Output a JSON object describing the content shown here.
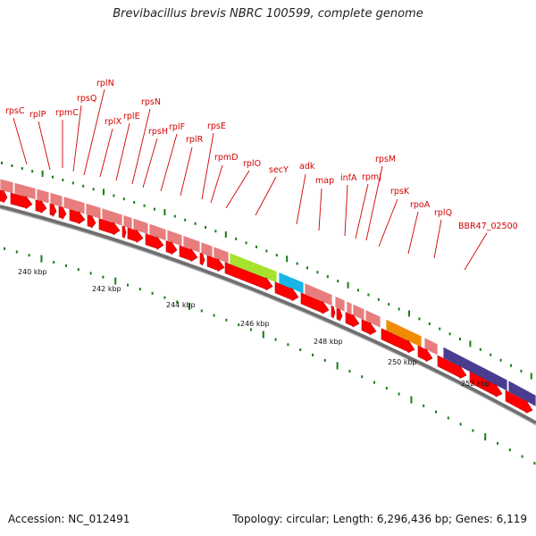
{
  "title": "Brevibacillus brevis NBRC 100599, complete genome",
  "footer": {
    "accession": "Accession: NC_012491",
    "topology": "Topology: circular; Length: 6,296,436 bp; Genes: 6,119"
  },
  "colors": {
    "label": "#d40000",
    "tick": "#1a7a1a",
    "cds": "#ff0000",
    "gene": "#e87d7d",
    "green_gene": "#a6e22e",
    "cyan_gene": "#17b6e6",
    "orange_gene": "#f08a00",
    "purple_gene": "#4a3d8f"
  },
  "kbp_labels": [
    "240 kbp",
    "242 kbp",
    "244 kbp",
    "246 kbp",
    "248 kbp",
    "250 kbp",
    "252 kbp"
  ],
  "gene_labels": [
    "rpsC",
    "rplP",
    "rpmC",
    "rpsQ",
    "rplN",
    "rplX",
    "rplE",
    "rpsN",
    "rpsH",
    "rplF",
    "rplR",
    "rpsE",
    "rpmD",
    "rplO",
    "secY",
    "adk",
    "map",
    "infA",
    "rpmJ",
    "rpsM",
    "rpsK",
    "rpoA",
    "rplQ",
    "BBR47_02500"
  ]
}
